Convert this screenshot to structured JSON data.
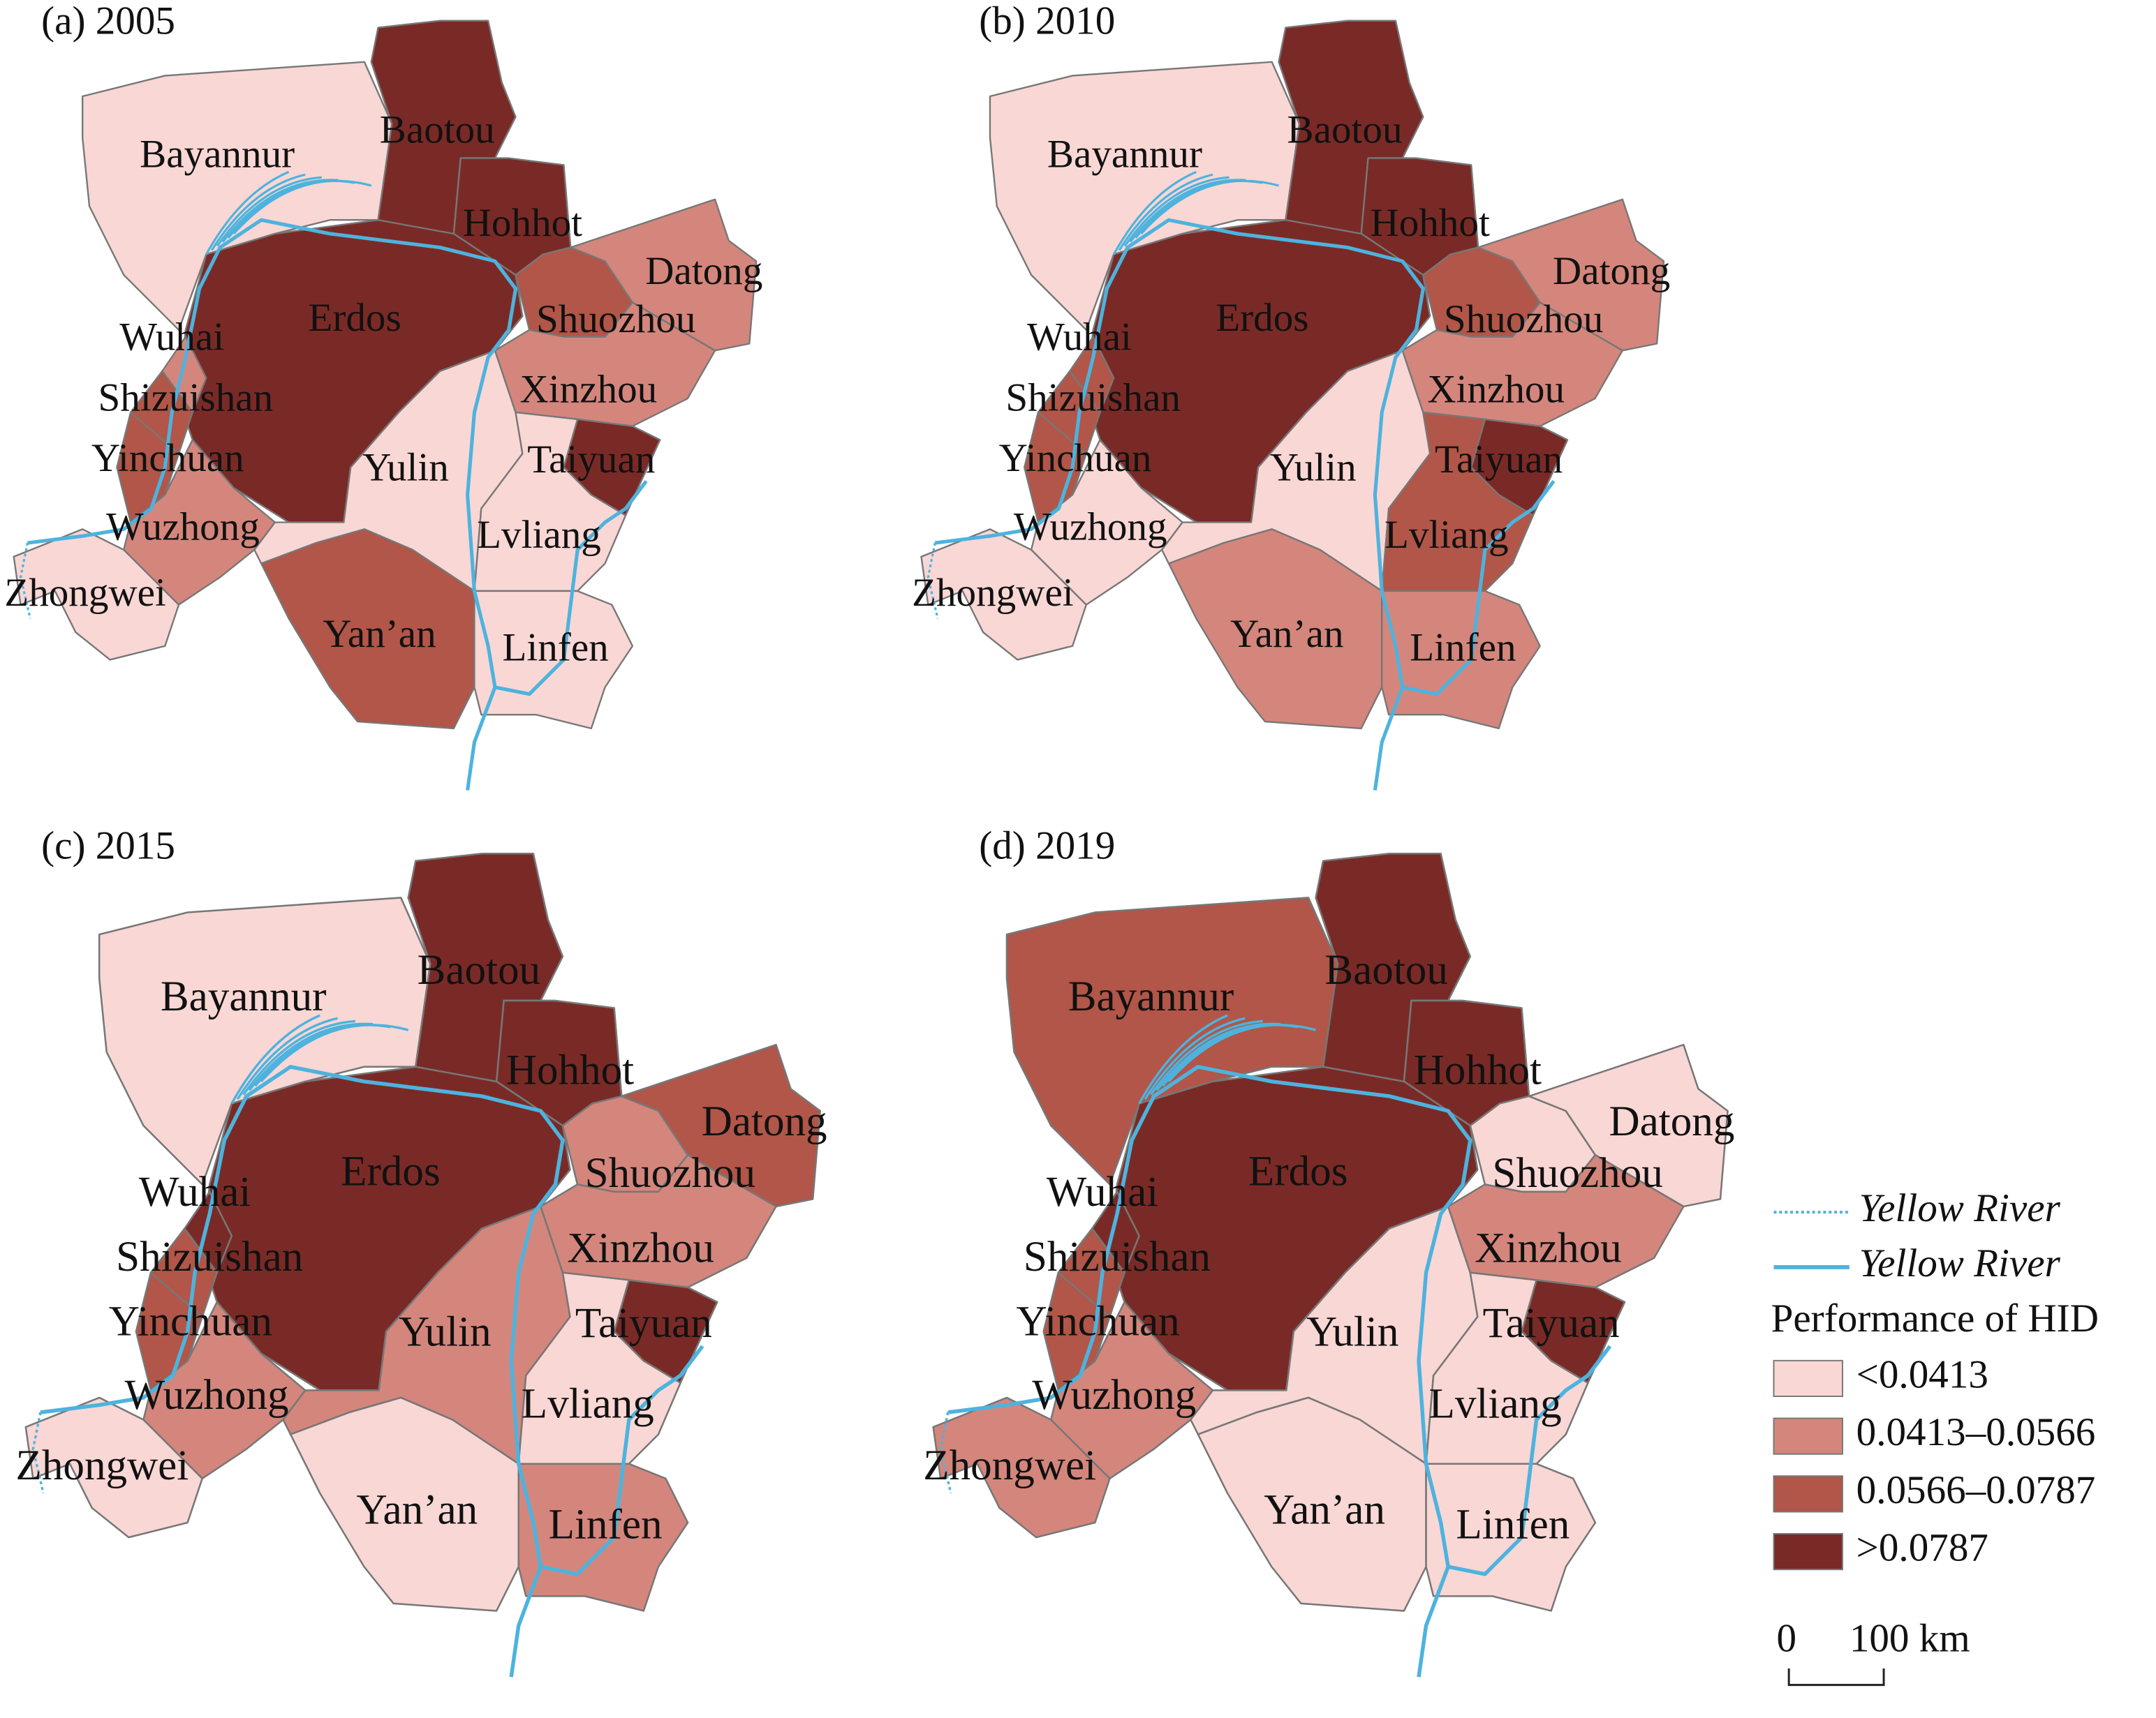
{
  "panels": [
    {
      "title": "(a) 2005",
      "regions": [
        {
          "name": "Bayannur",
          "class": 0
        },
        {
          "name": "Baotou",
          "class": 3
        },
        {
          "name": "Hohhot",
          "class": 3
        },
        {
          "name": "Erdos",
          "class": 3
        },
        {
          "name": "Wuhai",
          "class": 1
        },
        {
          "name": "Shizuishan",
          "class": 2
        },
        {
          "name": "Yinchuan",
          "class": 2
        },
        {
          "name": "Wuzhong",
          "class": 1
        },
        {
          "name": "Zhongwei",
          "class": 0
        },
        {
          "name": "Yulin",
          "class": 0
        },
        {
          "name": "Yan’an",
          "class": 2
        },
        {
          "name": "Shuozhou",
          "class": 2
        },
        {
          "name": "Datong",
          "class": 1
        },
        {
          "name": "Xinzhou",
          "class": 1
        },
        {
          "name": "Taiyuan",
          "class": 3
        },
        {
          "name": "Lvliang",
          "class": 0
        },
        {
          "name": "Linfen",
          "class": 0
        }
      ]
    },
    {
      "title": "(b) 2010",
      "regions": [
        {
          "name": "Bayannur",
          "class": 0
        },
        {
          "name": "Baotou",
          "class": 3
        },
        {
          "name": "Hohhot",
          "class": 3
        },
        {
          "name": "Erdos",
          "class": 3
        },
        {
          "name": "Wuhai",
          "class": 2
        },
        {
          "name": "Shizuishan",
          "class": 2
        },
        {
          "name": "Yinchuan",
          "class": 2
        },
        {
          "name": "Wuzhong",
          "class": 0
        },
        {
          "name": "Zhongwei",
          "class": 0
        },
        {
          "name": "Yulin",
          "class": 0
        },
        {
          "name": "Yan’an",
          "class": 1
        },
        {
          "name": "Shuozhou",
          "class": 2
        },
        {
          "name": "Datong",
          "class": 1
        },
        {
          "name": "Xinzhou",
          "class": 1
        },
        {
          "name": "Taiyuan",
          "class": 3
        },
        {
          "name": "Lvliang",
          "class": 2
        },
        {
          "name": "Linfen",
          "class": 1
        }
      ]
    },
    {
      "title": "(c) 2015",
      "regions": [
        {
          "name": "Bayannur",
          "class": 0
        },
        {
          "name": "Baotou",
          "class": 3
        },
        {
          "name": "Hohhot",
          "class": 3
        },
        {
          "name": "Erdos",
          "class": 3
        },
        {
          "name": "Wuhai",
          "class": 3
        },
        {
          "name": "Shizuishan",
          "class": 2
        },
        {
          "name": "Yinchuan",
          "class": 2
        },
        {
          "name": "Wuzhong",
          "class": 1
        },
        {
          "name": "Zhongwei",
          "class": 0
        },
        {
          "name": "Yulin",
          "class": 1
        },
        {
          "name": "Yan’an",
          "class": 0
        },
        {
          "name": "Shuozhou",
          "class": 1
        },
        {
          "name": "Datong",
          "class": 2
        },
        {
          "name": "Xinzhou",
          "class": 1
        },
        {
          "name": "Taiyuan",
          "class": 3
        },
        {
          "name": "Lvliang",
          "class": 0
        },
        {
          "name": "Linfen",
          "class": 1
        }
      ]
    },
    {
      "title": "(d) 2019",
      "regions": [
        {
          "name": "Bayannur",
          "class": 2
        },
        {
          "name": "Baotou",
          "class": 3
        },
        {
          "name": "Hohhot",
          "class": 3
        },
        {
          "name": "Erdos",
          "class": 3
        },
        {
          "name": "Wuhai",
          "class": 3
        },
        {
          "name": "Shizuishan",
          "class": 2
        },
        {
          "name": "Yinchuan",
          "class": 2
        },
        {
          "name": "Wuzhong",
          "class": 1
        },
        {
          "name": "Zhongwei",
          "class": 1
        },
        {
          "name": "Yulin",
          "class": 0
        },
        {
          "name": "Yan’an",
          "class": 0
        },
        {
          "name": "Shuozhou",
          "class": 0
        },
        {
          "name": "Datong",
          "class": 0
        },
        {
          "name": "Xinzhou",
          "class": 1
        },
        {
          "name": "Taiyuan",
          "class": 3
        },
        {
          "name": "Lvliang",
          "class": 0
        },
        {
          "name": "Linfen",
          "class": 0
        }
      ]
    }
  ],
  "legend": {
    "rivers": [
      "Yellow River",
      "Yellow River"
    ],
    "title": "Performance of HID",
    "classes": [
      {
        "label": "<0.0413",
        "color": "#f9d7d5"
      },
      {
        "label": "0.0413–0.0566",
        "color": "#d4867c"
      },
      {
        "label": "0.0566–0.0787",
        "color": "#b15648"
      },
      {
        "label": ">0.0787",
        "color": "#7a2a26"
      }
    ]
  },
  "scale_bar": {
    "labels": [
      "0",
      "100 km"
    ]
  }
}
